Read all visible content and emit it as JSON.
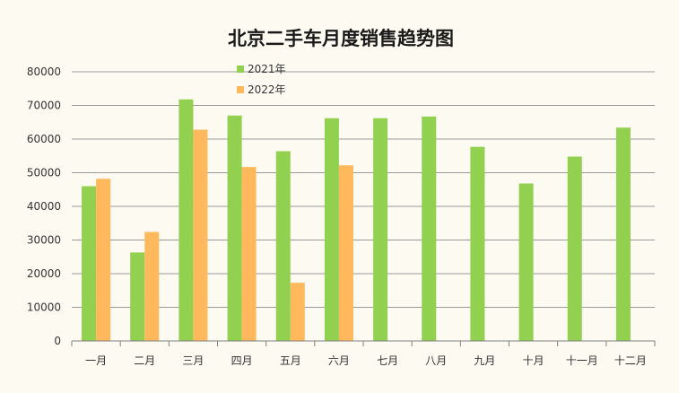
{
  "colors": {
    "background": "#fdfbf1",
    "series_2021": "#92d050",
    "series_2022": "#ffb95c",
    "grid": "#9a9a9a",
    "axis": "#808080"
  },
  "chart_data": {
    "type": "bar",
    "title": "北京二手车月度销售趋势图",
    "xlabel": "",
    "ylabel": "",
    "categories": [
      "一月",
      "二月",
      "三月",
      "四月",
      "五月",
      "六月",
      "七月",
      "八月",
      "九月",
      "十月",
      "十一月",
      "十二月"
    ],
    "series": [
      {
        "name": "2021年",
        "values": [
          46000,
          26300,
          71800,
          67000,
          56400,
          66200,
          66200,
          66700,
          57700,
          46800,
          54800,
          63400
        ]
      },
      {
        "name": "2022年",
        "values": [
          48200,
          32400,
          62800,
          51700,
          17300,
          52200,
          null,
          null,
          null,
          null,
          null,
          null
        ]
      }
    ],
    "ylim": [
      0,
      80000
    ],
    "yticks": [
      "0",
      "10000",
      "20000",
      "30000",
      "40000",
      "50000",
      "60000",
      "70000",
      "80000"
    ],
    "grid": true,
    "legend_position": "top-left"
  }
}
